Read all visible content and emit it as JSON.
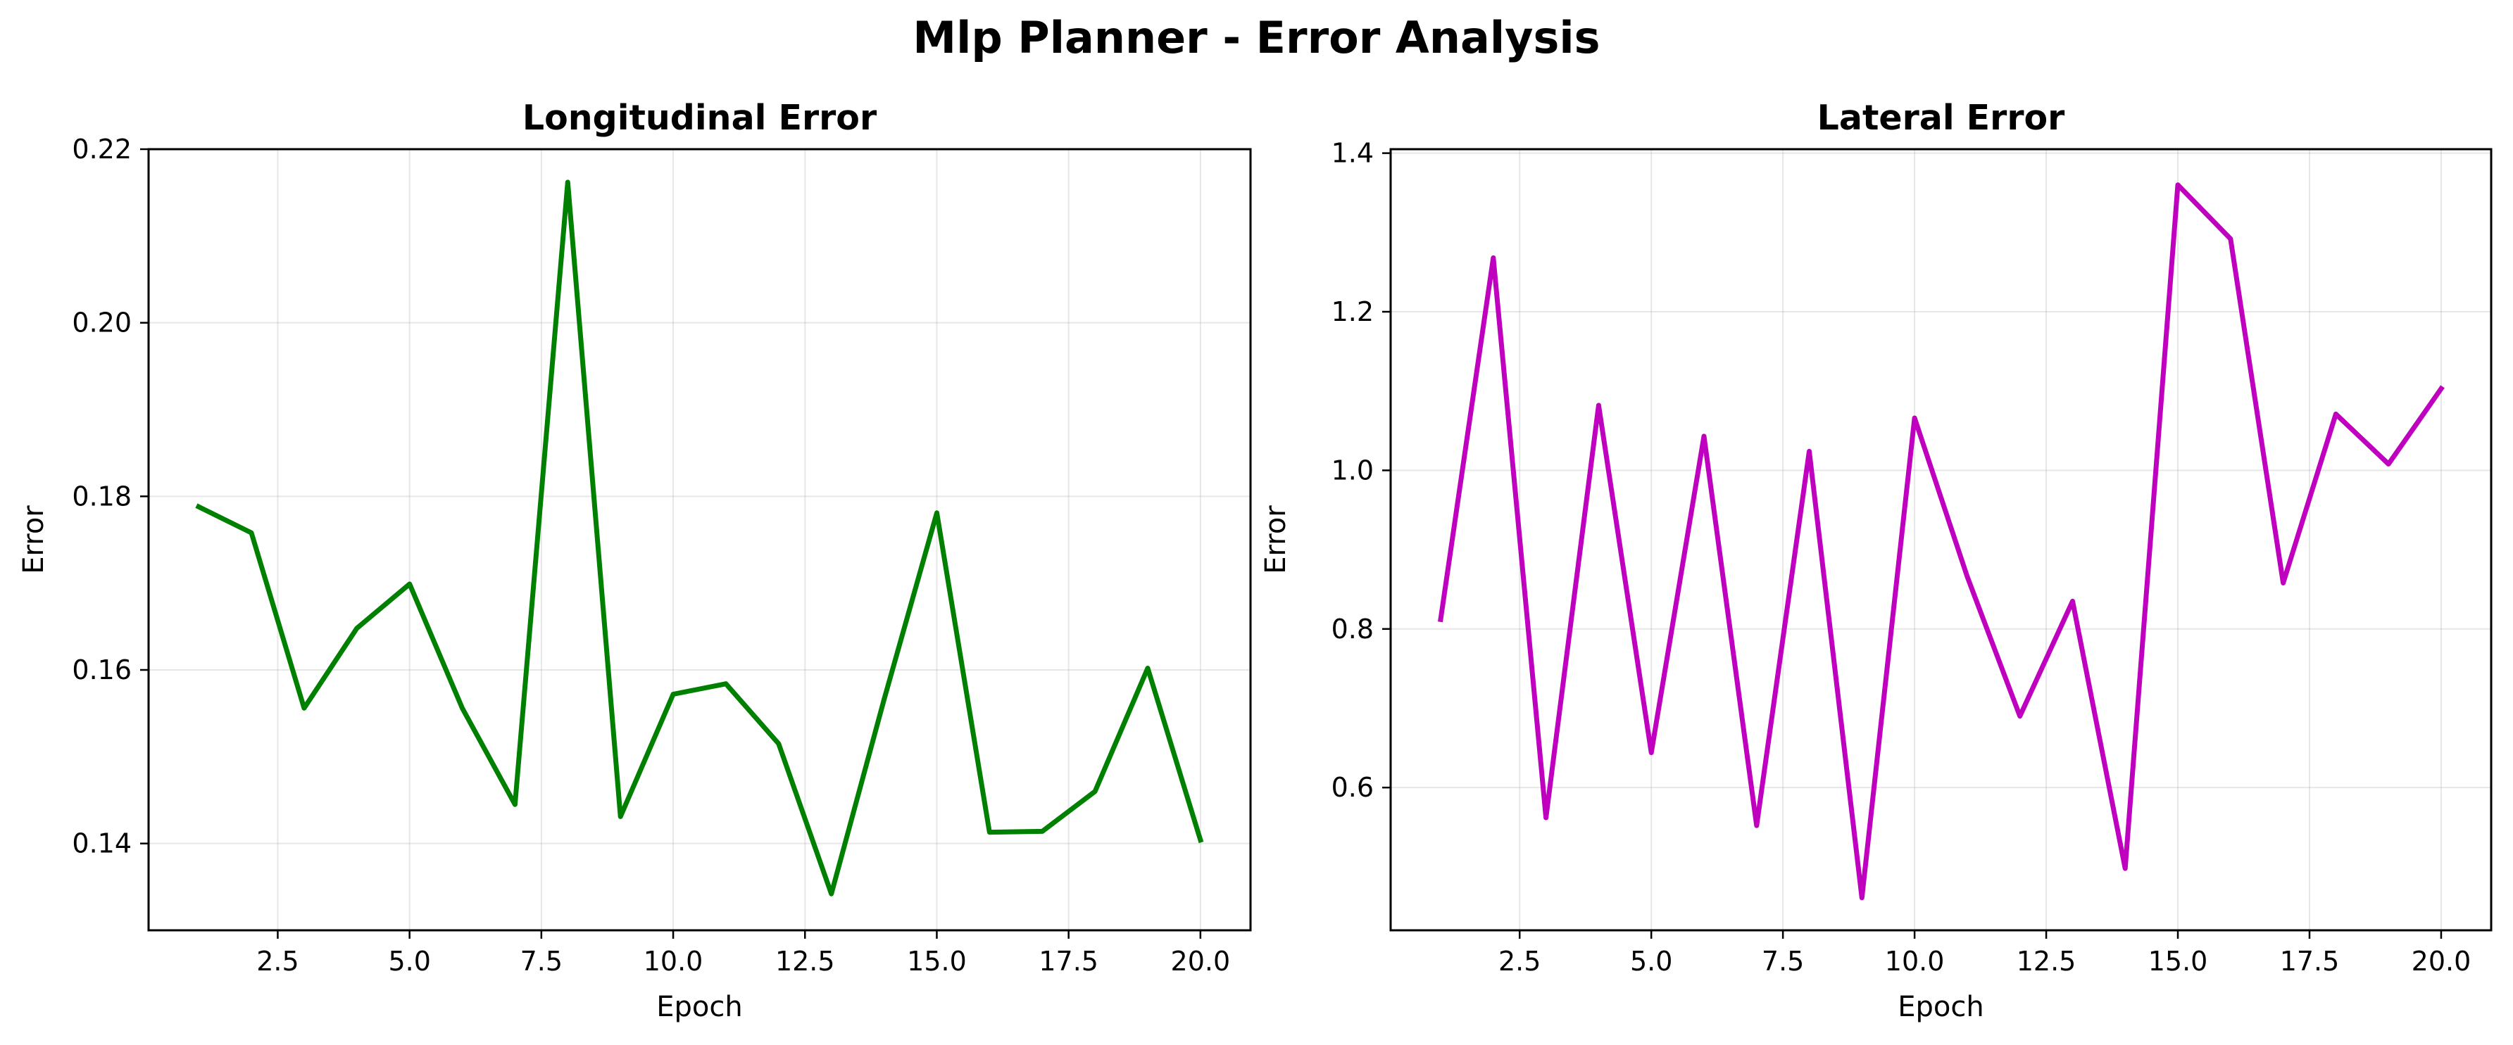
{
  "suptitle": "Mlp Planner - Error Analysis",
  "chart_data": [
    {
      "type": "line",
      "title": "Longitudinal Error",
      "xlabel": "Epoch",
      "ylabel": "Error",
      "xlim": [
        0.05,
        20.95
      ],
      "ylim": [
        0.13,
        0.22
      ],
      "xticks": [
        2.5,
        5.0,
        7.5,
        10.0,
        12.5,
        15.0,
        17.5,
        20.0
      ],
      "xtick_labels": [
        "2.5",
        "5.0",
        "7.5",
        "10.0",
        "12.5",
        "15.0",
        "17.5",
        "20.0"
      ],
      "yticks": [
        0.14,
        0.16,
        0.18,
        0.2,
        0.22
      ],
      "ytick_labels": [
        "0.14",
        "0.16",
        "0.18",
        "0.20",
        "0.22"
      ],
      "grid": true,
      "color": "#008000",
      "x": [
        1,
        2,
        3,
        4,
        5,
        6,
        7,
        8,
        9,
        10,
        11,
        12,
        13,
        14,
        15,
        16,
        17,
        18,
        19,
        20
      ],
      "values": [
        0.1788,
        0.1758,
        0.1556,
        0.1648,
        0.1699,
        0.1556,
        0.1445,
        0.2162,
        0.1431,
        0.1572,
        0.1584,
        0.1515,
        0.1342,
        0.1566,
        0.1781,
        0.1413,
        0.1414,
        0.146,
        0.1602,
        0.1404
      ]
    },
    {
      "type": "line",
      "title": "Lateral Error",
      "xlabel": "Epoch",
      "ylabel": "Error",
      "xlim": [
        0.05,
        20.95
      ],
      "ylim": [
        0.42,
        1.405
      ],
      "xticks": [
        2.5,
        5.0,
        7.5,
        10.0,
        12.5,
        15.0,
        17.5,
        20.0
      ],
      "xtick_labels": [
        "2.5",
        "5.0",
        "7.5",
        "10.0",
        "12.5",
        "15.0",
        "17.5",
        "20.0"
      ],
      "yticks": [
        0.6,
        0.8,
        1.0,
        1.2,
        1.4
      ],
      "ytick_labels": [
        "0.6",
        "0.8",
        "1.0",
        "1.2",
        "1.4"
      ],
      "grid": true,
      "color": "#bf00bf",
      "x": [
        1,
        2,
        3,
        4,
        5,
        6,
        7,
        8,
        9,
        10,
        11,
        12,
        13,
        14,
        15,
        16,
        17,
        18,
        19,
        20
      ],
      "values": [
        0.812,
        1.268,
        0.562,
        1.082,
        0.644,
        1.043,
        0.552,
        1.024,
        0.461,
        1.066,
        0.866,
        0.69,
        0.835,
        0.498,
        1.36,
        1.292,
        0.858,
        1.071,
        1.008,
        1.103
      ]
    }
  ]
}
